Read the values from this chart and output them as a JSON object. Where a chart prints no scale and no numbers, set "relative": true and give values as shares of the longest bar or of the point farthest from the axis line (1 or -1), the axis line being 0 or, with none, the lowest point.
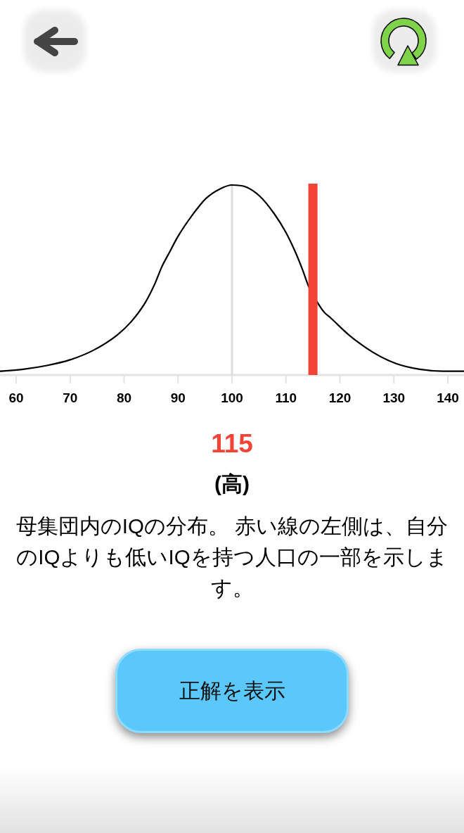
{
  "chart_data": {
    "type": "line",
    "relative": true,
    "x": [
      57,
      61.3,
      65.7,
      70,
      74.3,
      78.7,
      81.3,
      83.9,
      85.7,
      87,
      88.3,
      90,
      92.6,
      95.2,
      97.8,
      100,
      102.6,
      105.2,
      107.8,
      110,
      111.7,
      113,
      114.3,
      116.1,
      117.1,
      118.3,
      121.7,
      126.1,
      130.4,
      134.8,
      139.1,
      143
    ],
    "series": [
      {
        "color": "#000000",
        "values": [
          0.02,
          0.03,
          0.05,
          0.08,
          0.13,
          0.21,
          0.28,
          0.38,
          0.48,
          0.57,
          0.64,
          0.73,
          0.84,
          0.93,
          0.98,
          1,
          0.99,
          0.94,
          0.85,
          0.75,
          0.65,
          0.56,
          0.46,
          0.37,
          0.33,
          0.3,
          0.21,
          0.12,
          0.06,
          0.03,
          0.02,
          0.02
        ]
      }
    ],
    "xlim": [
      57,
      143
    ],
    "xticks": [
      60,
      70,
      80,
      90,
      100,
      110,
      120,
      130,
      140
    ],
    "ref_lines": [
      {
        "axis": "x",
        "value": 100,
        "color": "#dddddd"
      },
      {
        "axis": "x",
        "value": 115,
        "label": "115",
        "color": "#f44336"
      }
    ],
    "annotations": [
      "(高)",
      "母集団内のIQの分布。 赤い線の左側は、自分のIQよりも低いIQを持つ人口の一部を示します。",
      "正解を表示"
    ]
  }
}
